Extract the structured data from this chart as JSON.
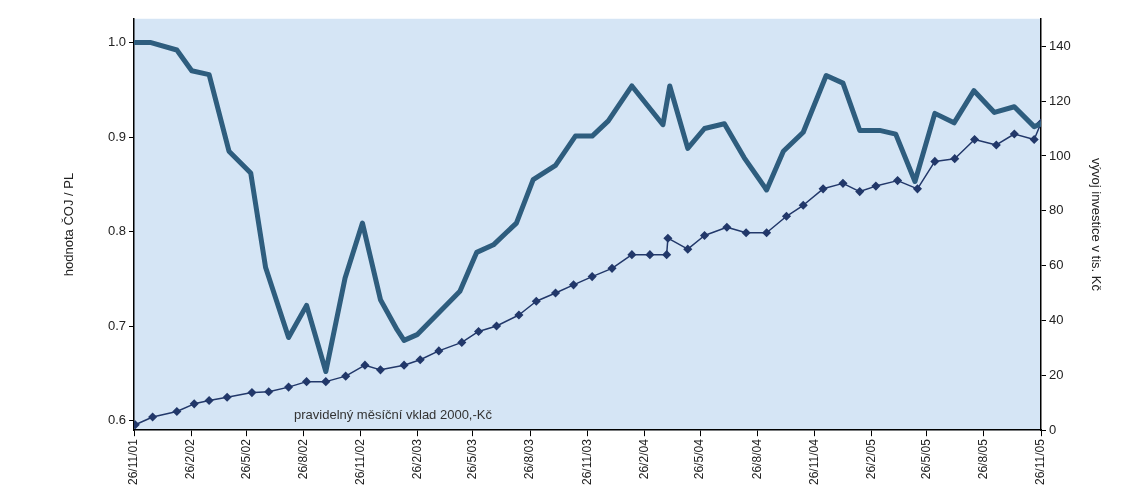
{
  "chart_data": {
    "type": "line",
    "ylabel": "hodnota ČOJ / PL",
    "y2label": "vývoj investice v tis. Kč",
    "xlim": [
      "2001-11-26",
      "2005-11-26"
    ],
    "xticks": [
      {
        "value": "2001-11-26",
        "label": "26/11/01"
      },
      {
        "value": "2002-02-26",
        "label": "26/2/02"
      },
      {
        "value": "2002-05-26",
        "label": "26/5/02"
      },
      {
        "value": "2002-08-26",
        "label": "26/8/02"
      },
      {
        "value": "2002-11-26",
        "label": "26/11/02"
      },
      {
        "value": "2003-02-26",
        "label": "26/2/03"
      },
      {
        "value": "2003-05-26",
        "label": "26/5/03"
      },
      {
        "value": "2003-08-26",
        "label": "26/8/03"
      },
      {
        "value": "2003-11-26",
        "label": "26/11/03"
      },
      {
        "value": "2004-02-26",
        "label": "26/2/04"
      },
      {
        "value": "2004-05-26",
        "label": "26/5/04"
      },
      {
        "value": "2004-08-26",
        "label": "26/8/04"
      },
      {
        "value": "2004-11-26",
        "label": "26/11/04"
      },
      {
        "value": "2005-02-26",
        "label": "26/2/05"
      },
      {
        "value": "2005-05-26",
        "label": "26/5/05"
      },
      {
        "value": "2005-08-26",
        "label": "26/8/05"
      },
      {
        "value": "2005-11-26",
        "label": "26/11/05"
      }
    ],
    "ylim": [
      0.59,
      1.025
    ],
    "yticks": [
      {
        "value": 0.6,
        "label": "0.6"
      },
      {
        "value": 0.7,
        "label": "0.7"
      },
      {
        "value": 0.8,
        "label": "0.8"
      },
      {
        "value": 0.9,
        "label": "0.9"
      },
      {
        "value": 1.0,
        "label": "1.0"
      }
    ],
    "y2lim": [
      0,
      150
    ],
    "y2ticks": [
      0,
      20,
      40,
      60,
      80,
      100,
      120,
      140
    ],
    "grid": false,
    "legend": false,
    "annotations": [
      "pravidelný měsíční vklad 2000,-Kč"
    ],
    "series": [
      {
        "color": "#2e5d7e",
        "marker": "none",
        "x": [
          "2001-11-28",
          "2001-12-22",
          "2002-02-03",
          "2002-02-27",
          "2002-03-27",
          "2002-04-28",
          "2002-06-02",
          "2002-06-26",
          "2002-08-02",
          "2002-08-31",
          "2002-10-01",
          "2002-11-01",
          "2002-11-29",
          "2002-12-28",
          "2003-01-24",
          "2003-02-04",
          "2003-02-25",
          "2003-05-05",
          "2003-06-01",
          "2003-06-28",
          "2003-08-04",
          "2003-08-31",
          "2003-10-06",
          "2003-11-07",
          "2003-12-04",
          "2003-12-30",
          "2004-02-06",
          "2004-03-27",
          "2004-04-07",
          "2004-05-06",
          "2004-06-02",
          "2004-07-04",
          "2004-08-05",
          "2004-09-10",
          "2004-10-07",
          "2004-11-08",
          "2004-12-15",
          "2005-01-11",
          "2005-02-07",
          "2005-03-11",
          "2005-04-06",
          "2005-05-07",
          "2005-06-08",
          "2005-07-09",
          "2005-08-10",
          "2005-09-12",
          "2005-10-14",
          "2005-11-15",
          "2005-11-26"
        ],
        "values": [
          1.0,
          1.0,
          0.992,
          0.97,
          0.966,
          0.885,
          0.862,
          0.762,
          0.688,
          0.722,
          0.652,
          0.751,
          0.809,
          0.728,
          0.696,
          0.685,
          0.691,
          0.737,
          0.778,
          0.786,
          0.809,
          0.855,
          0.87,
          0.901,
          0.901,
          0.917,
          0.954,
          0.913,
          0.954,
          0.888,
          0.909,
          0.914,
          0.878,
          0.844,
          0.885,
          0.905,
          0.965,
          0.957,
          0.907,
          0.907,
          0.903,
          0.853,
          0.925,
          0.915,
          0.949,
          0.926,
          0.932,
          0.911,
          0.914
        ]
      },
      {
        "color": "#22386a",
        "marker": "diamond",
        "axis": "y2",
        "x": [
          "2001-11-28",
          "2001-12-26",
          "2002-02-03",
          "2002-03-03",
          "2002-03-27",
          "2002-04-25",
          "2002-06-04",
          "2002-07-01",
          "2002-08-02",
          "2002-08-31",
          "2002-10-01",
          "2002-11-02",
          "2002-12-03",
          "2002-12-28",
          "2003-02-04",
          "2003-03-02",
          "2003-04-01",
          "2003-05-08",
          "2003-06-04",
          "2003-07-03",
          "2003-08-08",
          "2003-09-05",
          "2003-10-06",
          "2003-11-04",
          "2003-12-04",
          "2004-01-05",
          "2004-02-06",
          "2004-03-06",
          "2004-04-02",
          "2004-04-04",
          "2004-05-06",
          "2004-06-02",
          "2004-07-08",
          "2004-08-08",
          "2004-09-10",
          "2004-10-12",
          "2004-11-08",
          "2004-12-10",
          "2005-01-11",
          "2005-02-07",
          "2005-03-05",
          "2005-04-09",
          "2005-05-11",
          "2005-06-08",
          "2005-07-10",
          "2005-08-11",
          "2005-09-15",
          "2005-10-14",
          "2005-11-15",
          "2005-11-26"
        ],
        "values": [
          2,
          4.8,
          6.8,
          9.6,
          10.8,
          12,
          13.7,
          14,
          15.7,
          17.7,
          17.7,
          19.7,
          23.7,
          22,
          23.7,
          25.7,
          28.9,
          32,
          36,
          38,
          42,
          47,
          50,
          53,
          56,
          59,
          64,
          64,
          64,
          70,
          66,
          71,
          74,
          72,
          72,
          78,
          82,
          88,
          90,
          87,
          89,
          91,
          88,
          98,
          99,
          106,
          104,
          108,
          106,
          112
        ]
      }
    ]
  }
}
